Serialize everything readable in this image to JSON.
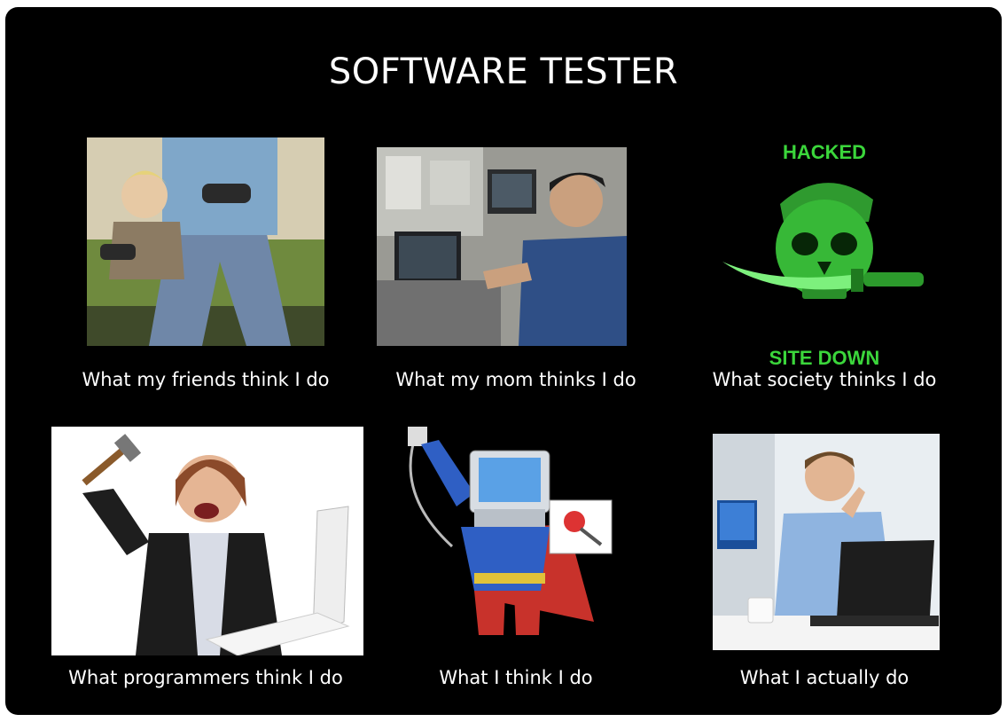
{
  "meme": {
    "title": "SOFTWARE TESTER",
    "panels": [
      {
        "caption": "What my friends think I do",
        "image": "kid-playing-video-games"
      },
      {
        "caption": "What my mom thinks I do",
        "image": "man-at-lab-computers"
      },
      {
        "caption": "What society thinks I do",
        "image": "hacked-pirate-skull",
        "overlay_top": "HACKED",
        "overlay_bottom": "SITE DOWN"
      },
      {
        "caption": "What programmers think I do",
        "image": "woman-smashing-laptop-with-hammer"
      },
      {
        "caption": "What I think I do",
        "image": "superhero-computer-bug-hunter"
      },
      {
        "caption": "What I actually do",
        "image": "man-thinking-at-laptop"
      }
    ],
    "colors": {
      "background": "#000000",
      "text": "#ffffff",
      "hacked_green": "#3bd63b"
    }
  }
}
